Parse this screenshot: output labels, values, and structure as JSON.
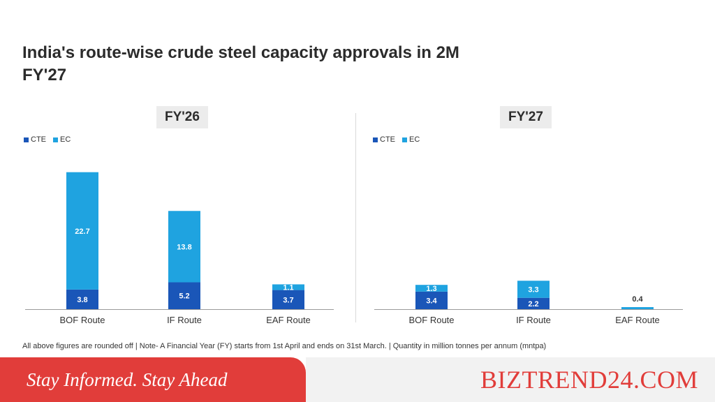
{
  "title": "India's route-wise crude steel capacity approvals in 2M FY'27",
  "footnote": "All above figures are rounded off | Note- A Financial Year (FY) starts from 1st April and ends on 31st March. | Quantity in million tonnes per annum (mntpa)",
  "colors": {
    "cte": "#1a56b8",
    "ec": "#1fa3e0",
    "banner_red": "#e13d3a"
  },
  "legend": {
    "cte": "CTE",
    "ec": "EC"
  },
  "chart_data": [
    {
      "type": "bar",
      "stacked": true,
      "title": "FY'26",
      "categories": [
        "BOF Route",
        "IF Route",
        "EAF Route"
      ],
      "series": [
        {
          "name": "CTE",
          "values": [
            3.8,
            5.2,
            3.7
          ]
        },
        {
          "name": "EC",
          "values": [
            22.7,
            13.8,
            1.1
          ]
        }
      ],
      "ylim": [
        0,
        27
      ],
      "legend_position": "top-left",
      "grid": false
    },
    {
      "type": "bar",
      "stacked": true,
      "title": "FY'27",
      "categories": [
        "BOF Route",
        "IF Route",
        "EAF Route"
      ],
      "series": [
        {
          "name": "CTE",
          "values": [
            3.4,
            2.2,
            0
          ]
        },
        {
          "name": "EC",
          "values": [
            1.3,
            3.3,
            0.4
          ]
        }
      ],
      "ylim": [
        0,
        27
      ],
      "legend_position": "top-left",
      "grid": false
    }
  ],
  "banner": {
    "tagline": "Stay Informed. Stay Ahead",
    "brand": "BIZTREND24.COM"
  }
}
